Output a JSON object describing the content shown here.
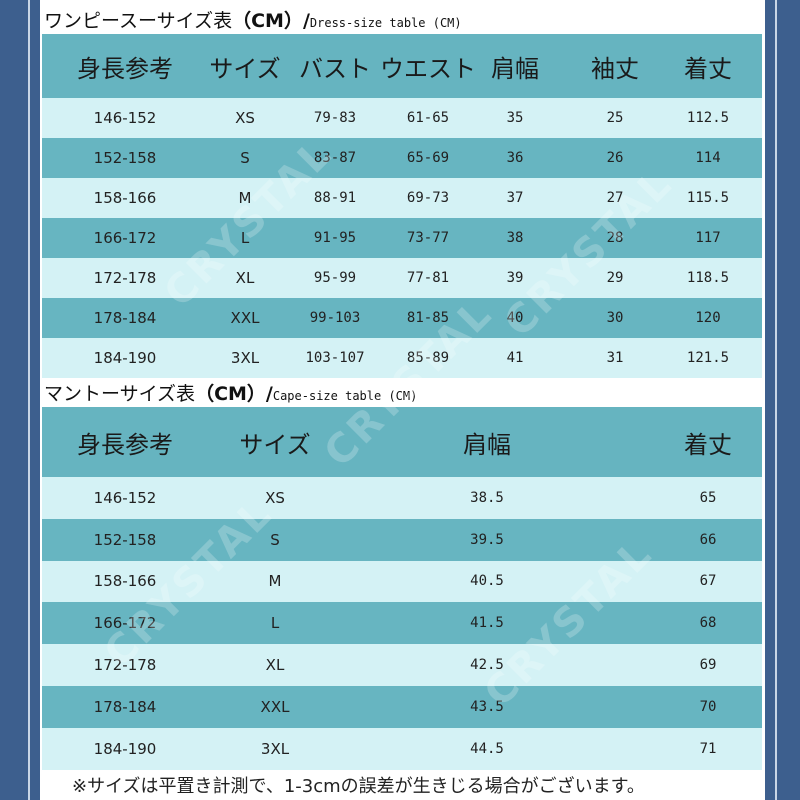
{
  "dress": {
    "title_jp": "ワンピースーサイズ表",
    "title_cm": "（CM）/",
    "title_en": "Dress-size table (CM)",
    "headers": [
      "身長参考",
      "サイズ",
      "バスト",
      "ウエスト",
      "肩幅",
      "袖丈",
      "着丈"
    ],
    "rows": [
      [
        "146-152",
        "XS",
        "79-83",
        "61-65",
        "35",
        "25",
        "112.5"
      ],
      [
        "152-158",
        "S",
        "83-87",
        "65-69",
        "36",
        "26",
        "114"
      ],
      [
        "158-166",
        "M",
        "88-91",
        "69-73",
        "37",
        "27",
        "115.5"
      ],
      [
        "166-172",
        "L",
        "91-95",
        "73-77",
        "38",
        "28",
        "117"
      ],
      [
        "172-178",
        "XL",
        "95-99",
        "77-81",
        "39",
        "29",
        "118.5"
      ],
      [
        "178-184",
        "XXL",
        "99-103",
        "81-85",
        "40",
        "30",
        "120"
      ],
      [
        "184-190",
        "3XL",
        "103-107",
        "85-89",
        "41",
        "31",
        "121.5"
      ]
    ]
  },
  "cape": {
    "title_jp": "マントーサイズ表",
    "title_cm": "（CM）/",
    "title_en": "Cape-size table (CM)",
    "headers": [
      "身長参考",
      "サイズ",
      "肩幅",
      "着丈"
    ],
    "rows": [
      [
        "146-152",
        "XS",
        "38.5",
        "65"
      ],
      [
        "152-158",
        "S",
        "39.5",
        "66"
      ],
      [
        "158-166",
        "M",
        "40.5",
        "67"
      ],
      [
        "166-172",
        "L",
        "41.5",
        "68"
      ],
      [
        "172-178",
        "XL",
        "42.5",
        "69"
      ],
      [
        "178-184",
        "XXL",
        "43.5",
        "70"
      ],
      [
        "184-190",
        "3XL",
        "44.5",
        "71"
      ]
    ]
  },
  "note": "※サイズは平置き計測で、1-3cmの誤差が生きじる場合がございます。",
  "watermark": "CRYSTAL",
  "colors": {
    "frame": "#3d5f8e",
    "header": "#66b4c0",
    "row_light": "#d4f2f5",
    "row_dark": "#67b5c1"
  }
}
